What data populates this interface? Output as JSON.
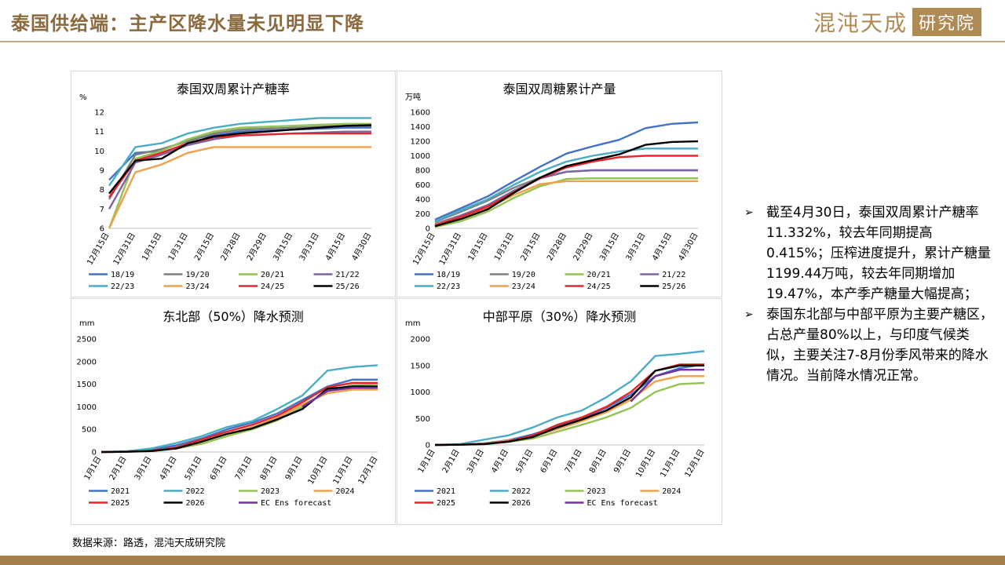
{
  "header": {
    "title": "泰国供给端：主产区降水量未见明显下降",
    "logo_text": "混沌天成",
    "logo_box": "研究院"
  },
  "footer": {
    "source": "数据来源：路透，混沌天成研究院"
  },
  "notes": [
    "截至4月30日，泰国双周累计产糖率11.332%，较去年同期提高0.415%；压榨进度提升，累计产糖量1199.44万吨，较去年同期增加19.47%，本产季产糖量大幅提高；",
    "泰国东北部与中部平原为主要产糖区，占总产量80%以上，与印度气候类似，主要关注7-8月份季风带来的降水情况。当前降水情况正常。"
  ],
  "colors": {
    "accent": "#8b6a3e",
    "band": "#a47e4c",
    "s1819": "#4472c4",
    "s1920": "#7f7f7f",
    "s2021": "#92c353",
    "s2122": "#7f63a3",
    "s2223": "#4bacc6",
    "s2324": "#f0a04b",
    "s2425": "#e8242a",
    "s2526": "#000000"
  },
  "chart_data": [
    {
      "type": "line",
      "title": "泰国双周累计产糖率",
      "unit": "%",
      "categories": [
        "12月15日",
        "12月31日",
        "1月15日",
        "1月31日",
        "2月15日",
        "2月28日",
        "2月29日",
        "3月15日",
        "3月31日",
        "4月15日",
        "4月30日"
      ],
      "ylim": [
        6,
        12
      ],
      "yticks": [
        6,
        7,
        8,
        9,
        10,
        11,
        12
      ],
      "series": [
        {
          "name": "18/19",
          "color": "#4472c4",
          "values": [
            8.5,
            9.9,
            10.0,
            10.6,
            10.8,
            11.0,
            11.05,
            11.1,
            11.15,
            11.2,
            11.2
          ]
        },
        {
          "name": "19/20",
          "color": "#7f7f7f",
          "values": [
            7.5,
            9.8,
            10.1,
            10.5,
            10.9,
            11.1,
            11.15,
            11.2,
            11.25,
            11.3,
            11.3
          ]
        },
        {
          "name": "20/21",
          "color": "#92c353",
          "values": [
            6.0,
            9.6,
            10.0,
            10.6,
            11.0,
            11.2,
            11.25,
            11.3,
            11.35,
            11.4,
            11.4
          ]
        },
        {
          "name": "21/22",
          "color": "#7f63a3",
          "values": [
            7.0,
            9.4,
            9.8,
            10.3,
            10.6,
            10.8,
            10.85,
            10.9,
            10.95,
            11.0,
            11.0
          ]
        },
        {
          "name": "22/23",
          "color": "#4bacc6",
          "values": [
            8.2,
            10.2,
            10.4,
            10.9,
            11.2,
            11.4,
            11.5,
            11.6,
            11.7,
            11.7,
            11.7
          ]
        },
        {
          "name": "23/24",
          "color": "#f0a04b",
          "values": [
            6.0,
            8.9,
            9.3,
            9.9,
            10.2,
            10.2,
            10.2,
            10.2,
            10.2,
            10.2,
            10.2
          ]
        },
        {
          "name": "24/25",
          "color": "#e8242a",
          "values": [
            7.6,
            9.5,
            9.9,
            10.4,
            10.7,
            10.8,
            10.85,
            10.9,
            10.9,
            10.9,
            10.9
          ]
        },
        {
          "name": "25/26",
          "color": "#000000",
          "values": [
            7.8,
            9.5,
            9.6,
            10.4,
            10.75,
            10.9,
            11.0,
            11.1,
            11.2,
            11.3,
            11.33
          ]
        }
      ]
    },
    {
      "type": "line",
      "title": "泰国双周糖累计产量",
      "unit": "万吨",
      "categories": [
        "12月15日",
        "12月31日",
        "1月15日",
        "1月31日",
        "2月15日",
        "2月28日",
        "2月29日",
        "3月15日",
        "3月31日",
        "4月15日",
        "4月30日"
      ],
      "ylim": [
        0,
        1600
      ],
      "yticks": [
        0,
        200,
        400,
        600,
        800,
        1000,
        1200,
        1400,
        1600
      ],
      "series": [
        {
          "name": "18/19",
          "color": "#4472c4",
          "values": [
            120,
            280,
            440,
            650,
            850,
            1030,
            1130,
            1220,
            1380,
            1440,
            1460
          ]
        },
        {
          "name": "19/20",
          "color": "#7f7f7f",
          "values": [
            90,
            230,
            380,
            560,
            700,
            780,
            800,
            800,
            800,
            800,
            800
          ]
        },
        {
          "name": "20/21",
          "color": "#92c353",
          "values": [
            20,
            100,
            230,
            420,
            580,
            680,
            690,
            690,
            690,
            690,
            690
          ]
        },
        {
          "name": "21/22",
          "color": "#7f63a3",
          "values": [
            60,
            180,
            320,
            520,
            690,
            780,
            800,
            800,
            800,
            800,
            800
          ]
        },
        {
          "name": "22/23",
          "color": "#4bacc6",
          "values": [
            100,
            250,
            400,
            600,
            780,
            920,
            1000,
            1060,
            1100,
            1100,
            1100
          ]
        },
        {
          "name": "23/24",
          "color": "#f0a04b",
          "values": [
            50,
            160,
            280,
            460,
            610,
            650,
            650,
            650,
            650,
            650,
            650
          ]
        },
        {
          "name": "24/25",
          "color": "#e8242a",
          "values": [
            40,
            160,
            300,
            500,
            690,
            840,
            920,
            980,
            1000,
            1000,
            1000
          ]
        },
        {
          "name": "25/26",
          "color": "#000000",
          "values": [
            30,
            130,
            260,
            490,
            700,
            860,
            940,
            1020,
            1150,
            1190,
            1199
          ]
        }
      ]
    },
    {
      "type": "line",
      "title": "东北部（50%）降水预测",
      "unit": "mm",
      "categories": [
        "1月1日",
        "2月1日",
        "3月1日",
        "4月1日",
        "5月1日",
        "6月1日",
        "7月1日",
        "8月1日",
        "9月1日",
        "10月1日",
        "11月1日",
        "12月1日"
      ],
      "ylim": [
        0,
        2500
      ],
      "yticks": [
        0,
        500,
        1000,
        1500,
        2000,
        2500
      ],
      "series": [
        {
          "name": "2021",
          "color": "#4472c4",
          "values": [
            0,
            10,
            50,
            150,
            300,
            500,
            650,
            850,
            1150,
            1450,
            1600,
            1600
          ]
        },
        {
          "name": "2022",
          "color": "#4bacc6",
          "values": [
            0,
            15,
            80,
            200,
            350,
            550,
            680,
            950,
            1250,
            1800,
            1880,
            1920
          ]
        },
        {
          "name": "2023",
          "color": "#92c353",
          "values": [
            0,
            5,
            20,
            80,
            180,
            350,
            500,
            700,
            1000,
            1350,
            1480,
            1500
          ]
        },
        {
          "name": "2024",
          "color": "#f0a04b",
          "values": [
            0,
            5,
            30,
            100,
            250,
            400,
            550,
            750,
            1050,
            1300,
            1380,
            1380
          ]
        },
        {
          "name": "2025",
          "color": "#e8242a",
          "values": [
            0,
            5,
            30,
            100,
            280,
            450,
            600,
            800,
            1100,
            1430,
            1530,
            1530
          ]
        },
        {
          "name": "2026",
          "color": "#000000",
          "values": [
            0,
            5,
            20,
            80,
            230,
            400,
            520,
            720,
            950,
            1400,
            1450,
            1450
          ]
        },
        {
          "name": "EC Ens forecast",
          "color": "#7030a0",
          "values": [
            null,
            null,
            null,
            null,
            null,
            null,
            null,
            null,
            1000,
            1350,
            1420,
            1420
          ]
        }
      ]
    },
    {
      "type": "line",
      "title": "中部平原（30%）降水预测",
      "unit": "mm",
      "categories": [
        "1月1日",
        "2月1日",
        "3月1日",
        "4月1日",
        "5月1日",
        "6月1日",
        "7月1日",
        "8月1日",
        "9月1日",
        "10月1日",
        "11月1日",
        "12月1日"
      ],
      "ylim": [
        0,
        2000
      ],
      "yticks": [
        0,
        500,
        1000,
        1500,
        2000
      ],
      "series": [
        {
          "name": "2021",
          "color": "#4472c4",
          "values": [
            0,
            5,
            30,
            90,
            200,
            350,
            500,
            700,
            950,
            1300,
            1450,
            1520
          ]
        },
        {
          "name": "2022",
          "color": "#4bacc6",
          "values": [
            0,
            15,
            100,
            180,
            330,
            520,
            650,
            900,
            1200,
            1680,
            1720,
            1770
          ]
        },
        {
          "name": "2023",
          "color": "#92c353",
          "values": [
            0,
            5,
            20,
            60,
            120,
            250,
            380,
            520,
            700,
            1000,
            1150,
            1170
          ]
        },
        {
          "name": "2024",
          "color": "#f0a04b",
          "values": [
            0,
            5,
            25,
            80,
            160,
            300,
            450,
            620,
            850,
            1200,
            1300,
            1300
          ]
        },
        {
          "name": "2025",
          "color": "#e8242a",
          "values": [
            0,
            5,
            20,
            70,
            180,
            380,
            520,
            720,
            1000,
            1400,
            1520,
            1520
          ]
        },
        {
          "name": "2026",
          "color": "#000000",
          "values": [
            0,
            5,
            15,
            60,
            150,
            330,
            480,
            650,
            900,
            1400,
            1500,
            1500
          ]
        },
        {
          "name": "EC Ens forecast",
          "color": "#7030a0",
          "values": [
            null,
            null,
            null,
            null,
            null,
            null,
            null,
            null,
            820,
            1300,
            1420,
            1420
          ]
        }
      ]
    }
  ]
}
